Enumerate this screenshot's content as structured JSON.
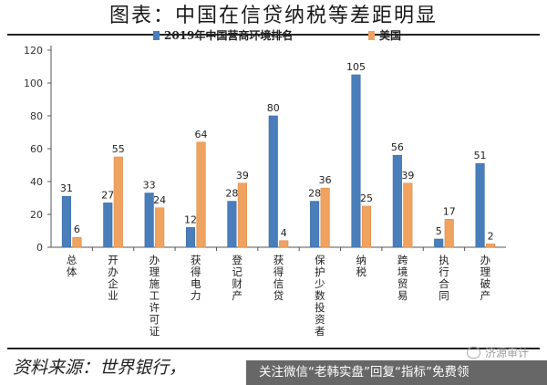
{
  "title": "图表：中国在信贷纳税等差距明显",
  "source": "资料来源：世界银行，",
  "watermark": "济源审计",
  "banner": "关注微信“老韩实盘”回复“指标”免费领",
  "colors": {
    "china": "#4a7ebb",
    "us": "#f0a260",
    "axis": "#555555"
  },
  "chart_data": {
    "type": "bar",
    "categories": [
      "总体",
      "开办企业",
      "办理施工许可证",
      "获得电力",
      "登记财产",
      "获得信贷",
      "保护少数投资者",
      "纳税",
      "跨境贸易",
      "执行合同",
      "办理破产"
    ],
    "series": [
      {
        "name": "2019年中国营商环境排名",
        "values": [
          31,
          27,
          33,
          12,
          28,
          80,
          28,
          105,
          56,
          5,
          51
        ]
      },
      {
        "name": "美国",
        "values": [
          6,
          55,
          24,
          64,
          39,
          4,
          36,
          25,
          39,
          17,
          2
        ]
      }
    ],
    "ylim": [
      0,
      120
    ],
    "yticks": [
      0,
      20,
      40,
      60,
      80,
      100,
      120
    ],
    "legend": "top",
    "grid": false
  }
}
